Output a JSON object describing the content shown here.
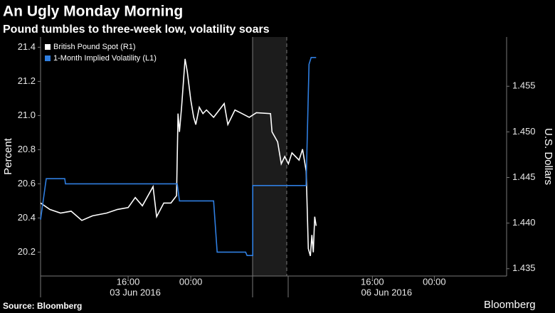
{
  "chart_data": {
    "type": "line",
    "title": "An Ugly Monday Morning",
    "subtitle": "Pound tumbles to three-week low, volatility soars",
    "ylabel": "Percent",
    "y2label": "U.S. Dollars",
    "source": "Source: Bloomberg",
    "brand": "Bloomberg",
    "xlim": [
      0,
      59.5
    ],
    "xticks": [
      {
        "value": 11.18,
        "label": "16:00"
      },
      {
        "value": 19.18,
        "label": "00:00"
      },
      {
        "value": 42.36,
        "label": "16:00"
      },
      {
        "value": 50.27,
        "label": "00:00"
      }
    ],
    "date_labels": [
      {
        "value": 12.09,
        "label": "03 Jun 2016"
      },
      {
        "value": 44.18,
        "label": "06 Jun 2016"
      }
    ],
    "ylim": [
      20.06,
      21.46
    ],
    "yticks": [
      20.2,
      20.4,
      20.6,
      20.8,
      {
        "value": 21,
        "label": "21.0"
      },
      21.2,
      21.4
    ],
    "y2lim": [
      1.4342,
      1.4604
    ],
    "y2ticks": [
      1.435,
      {
        "value": 1.44,
        "label": "1.440"
      },
      1.445,
      {
        "value": 1.45,
        "label": "1.450"
      },
      1.455
    ],
    "legend": "top-left",
    "series": [
      {
        "name": "British Pound Spot  (R1)",
        "color": "#ffffff",
        "axis": "y2",
        "x": [
          0,
          1.18,
          2.55,
          3.91,
          5.27,
          6.64,
          8.45,
          9.82,
          11.18,
          12.09,
          13.0,
          14.36,
          14.82,
          15.73,
          16.64,
          17.36,
          17.55,
          17.73,
          18.0,
          18.45,
          18.73,
          19.18,
          19.55,
          19.82,
          20.27,
          20.73,
          21.18,
          22.09,
          23.45,
          23.91,
          24.82,
          25.73,
          26.64,
          27.55,
          29.36,
          29.55,
          30.27,
          30.73,
          31.18,
          31.64,
          32.09,
          33.0,
          33.45,
          33.91,
          34.18,
          34.45,
          34.64,
          34.82,
          35.0,
          35.18
        ],
        "values": [
          1.4422,
          1.4415,
          1.4411,
          1.4413,
          1.4403,
          1.4408,
          1.4411,
          1.4415,
          1.4417,
          1.4428,
          1.4419,
          1.444,
          1.4407,
          1.4422,
          1.4422,
          1.443,
          1.452,
          1.45,
          1.4527,
          1.458,
          1.4566,
          1.4535,
          1.4516,
          1.4508,
          1.4527,
          1.452,
          1.4524,
          1.4516,
          1.4531,
          1.4508,
          1.4524,
          1.452,
          1.4516,
          1.4521,
          1.452,
          1.45,
          1.4489,
          1.4465,
          1.4473,
          1.4465,
          1.4477,
          1.4469,
          1.4481,
          1.4457,
          1.4372,
          1.4364,
          1.4387,
          1.4368,
          1.4407,
          1.4397
        ]
      },
      {
        "name": "1-Month Implied Volatility  (L1)",
        "color": "#2f7ee0",
        "axis": "y",
        "x": [
          0,
          0.73,
          3.09,
          3.18,
          17.45,
          17.73,
          22.09,
          22.55,
          26.18,
          26.36,
          27.09,
          27.09,
          33.9,
          34.27,
          34.55,
          35.18
        ],
        "values": [
          20.39,
          20.63,
          20.63,
          20.6,
          20.6,
          20.5,
          20.5,
          20.2,
          20.2,
          20.18,
          20.18,
          20.59,
          20.59,
          21.3,
          21.34,
          21.34
        ]
      }
    ]
  }
}
